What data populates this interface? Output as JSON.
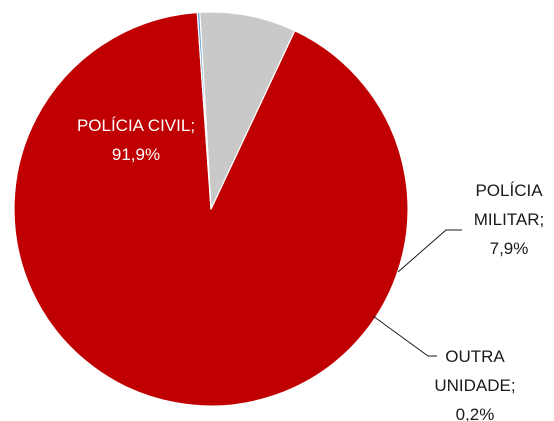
{
  "chart_data": {
    "type": "pie",
    "slices": [
      {
        "label_lines": [
          "POLÍCIA CIVIL;",
          "91,9%"
        ],
        "value": 91.9,
        "color": "#C00000",
        "label_color": "#FFFFFF"
      },
      {
        "label_lines": [
          "POLÍCIA",
          "MILITAR;",
          "7,9%"
        ],
        "value": 7.9,
        "color": "#C9C9C9",
        "label_color": "#1A1A1A"
      },
      {
        "label_lines": [
          "OUTRA",
          "UNIDADE;",
          "0,2%"
        ],
        "value": 0.2,
        "color": "#5B9BD5",
        "label_color": "#1A1A1A"
      }
    ],
    "start_angle_deg": 94,
    "direction": "counterclockwise",
    "legend": "none",
    "slice_border_color": "#FFFFFF"
  }
}
